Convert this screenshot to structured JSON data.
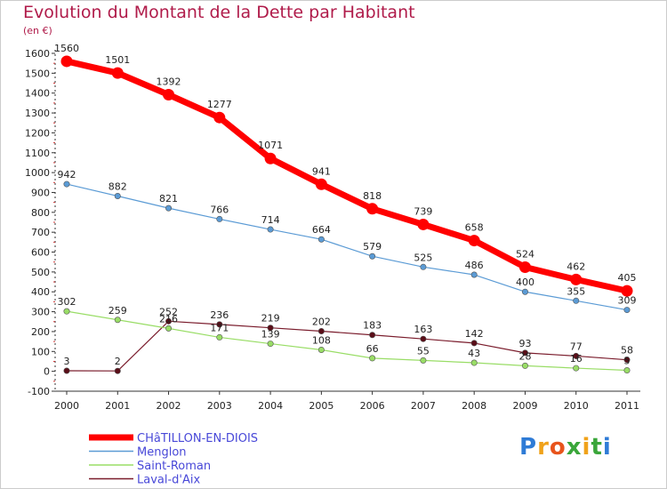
{
  "header": {
    "title": "Evolution du Montant de la Dette par Habitant",
    "subtitle": "(en €)"
  },
  "logo": {
    "text": "Proxiti"
  },
  "colors": {
    "title": "#b01b4a",
    "legend_text": "#4848d8"
  },
  "chart_data": {
    "type": "line",
    "title": "Evolution du Montant de la Dette par Habitant",
    "subtitle": "(en €)",
    "xlabel": "",
    "ylabel": "",
    "ylim": [
      -100,
      1600
    ],
    "yticks": [
      -100,
      0,
      100,
      200,
      300,
      400,
      500,
      600,
      700,
      800,
      900,
      1000,
      1100,
      1200,
      1300,
      1400,
      1500,
      1600
    ],
    "x": [
      "2000",
      "2001",
      "2002",
      "2003",
      "2004",
      "2005",
      "2006",
      "2007",
      "2008",
      "2009",
      "2010",
      "2011"
    ],
    "grid": false,
    "legend_position": "bottom-left",
    "series": [
      {
        "name": "CHâTILLON-EN-DIOIS",
        "color": "#ff0000",
        "values": [
          1560,
          1501,
          1392,
          1277,
          1071,
          941,
          818,
          739,
          658,
          524,
          462,
          405
        ]
      },
      {
        "name": "Menglon",
        "color": "#5b9bd5",
        "values": [
          942,
          882,
          821,
          766,
          714,
          664,
          579,
          525,
          486,
          400,
          355,
          309
        ]
      },
      {
        "name": "Saint-Roman",
        "color": "#99dd66",
        "values": [
          302,
          259,
          216,
          171,
          139,
          108,
          66,
          55,
          43,
          28,
          16,
          5
        ]
      },
      {
        "name": "Laval-d'Aix",
        "color": "#7a1c2c",
        "values": [
          3,
          2,
          252,
          236,
          219,
          202,
          183,
          163,
          142,
          93,
          77,
          58
        ]
      }
    ]
  }
}
